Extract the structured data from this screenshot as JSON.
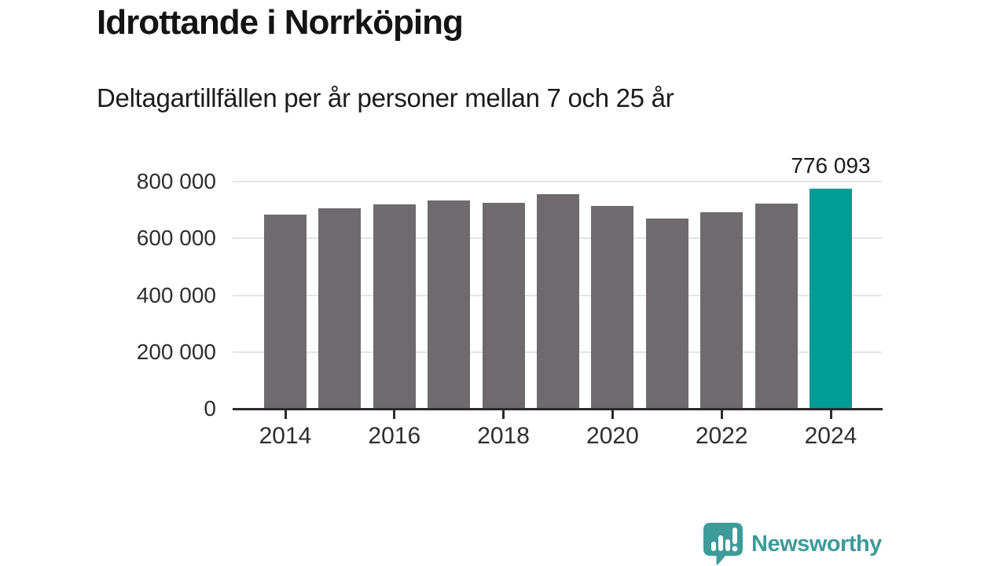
{
  "title": "Idrottande i Norrköping",
  "subtitle": "Deltagartillfällen per år personer mellan 7 och 25 år",
  "chart_data": {
    "type": "bar",
    "title": "Idrottande i Norrköping",
    "subtitle": "Deltagartillfällen per år personer mellan 7 och 25 år",
    "categories": [
      "2014",
      "2015",
      "2016",
      "2017",
      "2018",
      "2019",
      "2020",
      "2021",
      "2022",
      "2023",
      "2024"
    ],
    "values": [
      684000,
      706000,
      720000,
      734000,
      724000,
      755000,
      715000,
      671000,
      692000,
      723000,
      776093
    ],
    "highlight": {
      "index": 10,
      "label": "776 093"
    },
    "ylim": [
      0,
      800000
    ],
    "yticks": [
      {
        "value": 800000,
        "label": "800 000"
      },
      {
        "value": 600000,
        "label": "600 000"
      },
      {
        "value": 400000,
        "label": "400 000"
      },
      {
        "value": 200000,
        "label": "200 000"
      },
      {
        "value": 0,
        "label": "0"
      }
    ],
    "xtick_labels": [
      "2014",
      "2016",
      "2018",
      "2020",
      "2022",
      "2024"
    ],
    "grid": true,
    "legend_position": "none",
    "colors": {
      "bar": "#6e6a6e",
      "highlight": "#009c96",
      "gridline": "#e4e4e4",
      "axis": "#2b2b2b",
      "text": "#1a1a1a"
    }
  },
  "footer": {
    "brand": "Newsworthy",
    "brand_color": "#3d9b99",
    "icon": "speech-bubble-bar-chart-icon"
  }
}
